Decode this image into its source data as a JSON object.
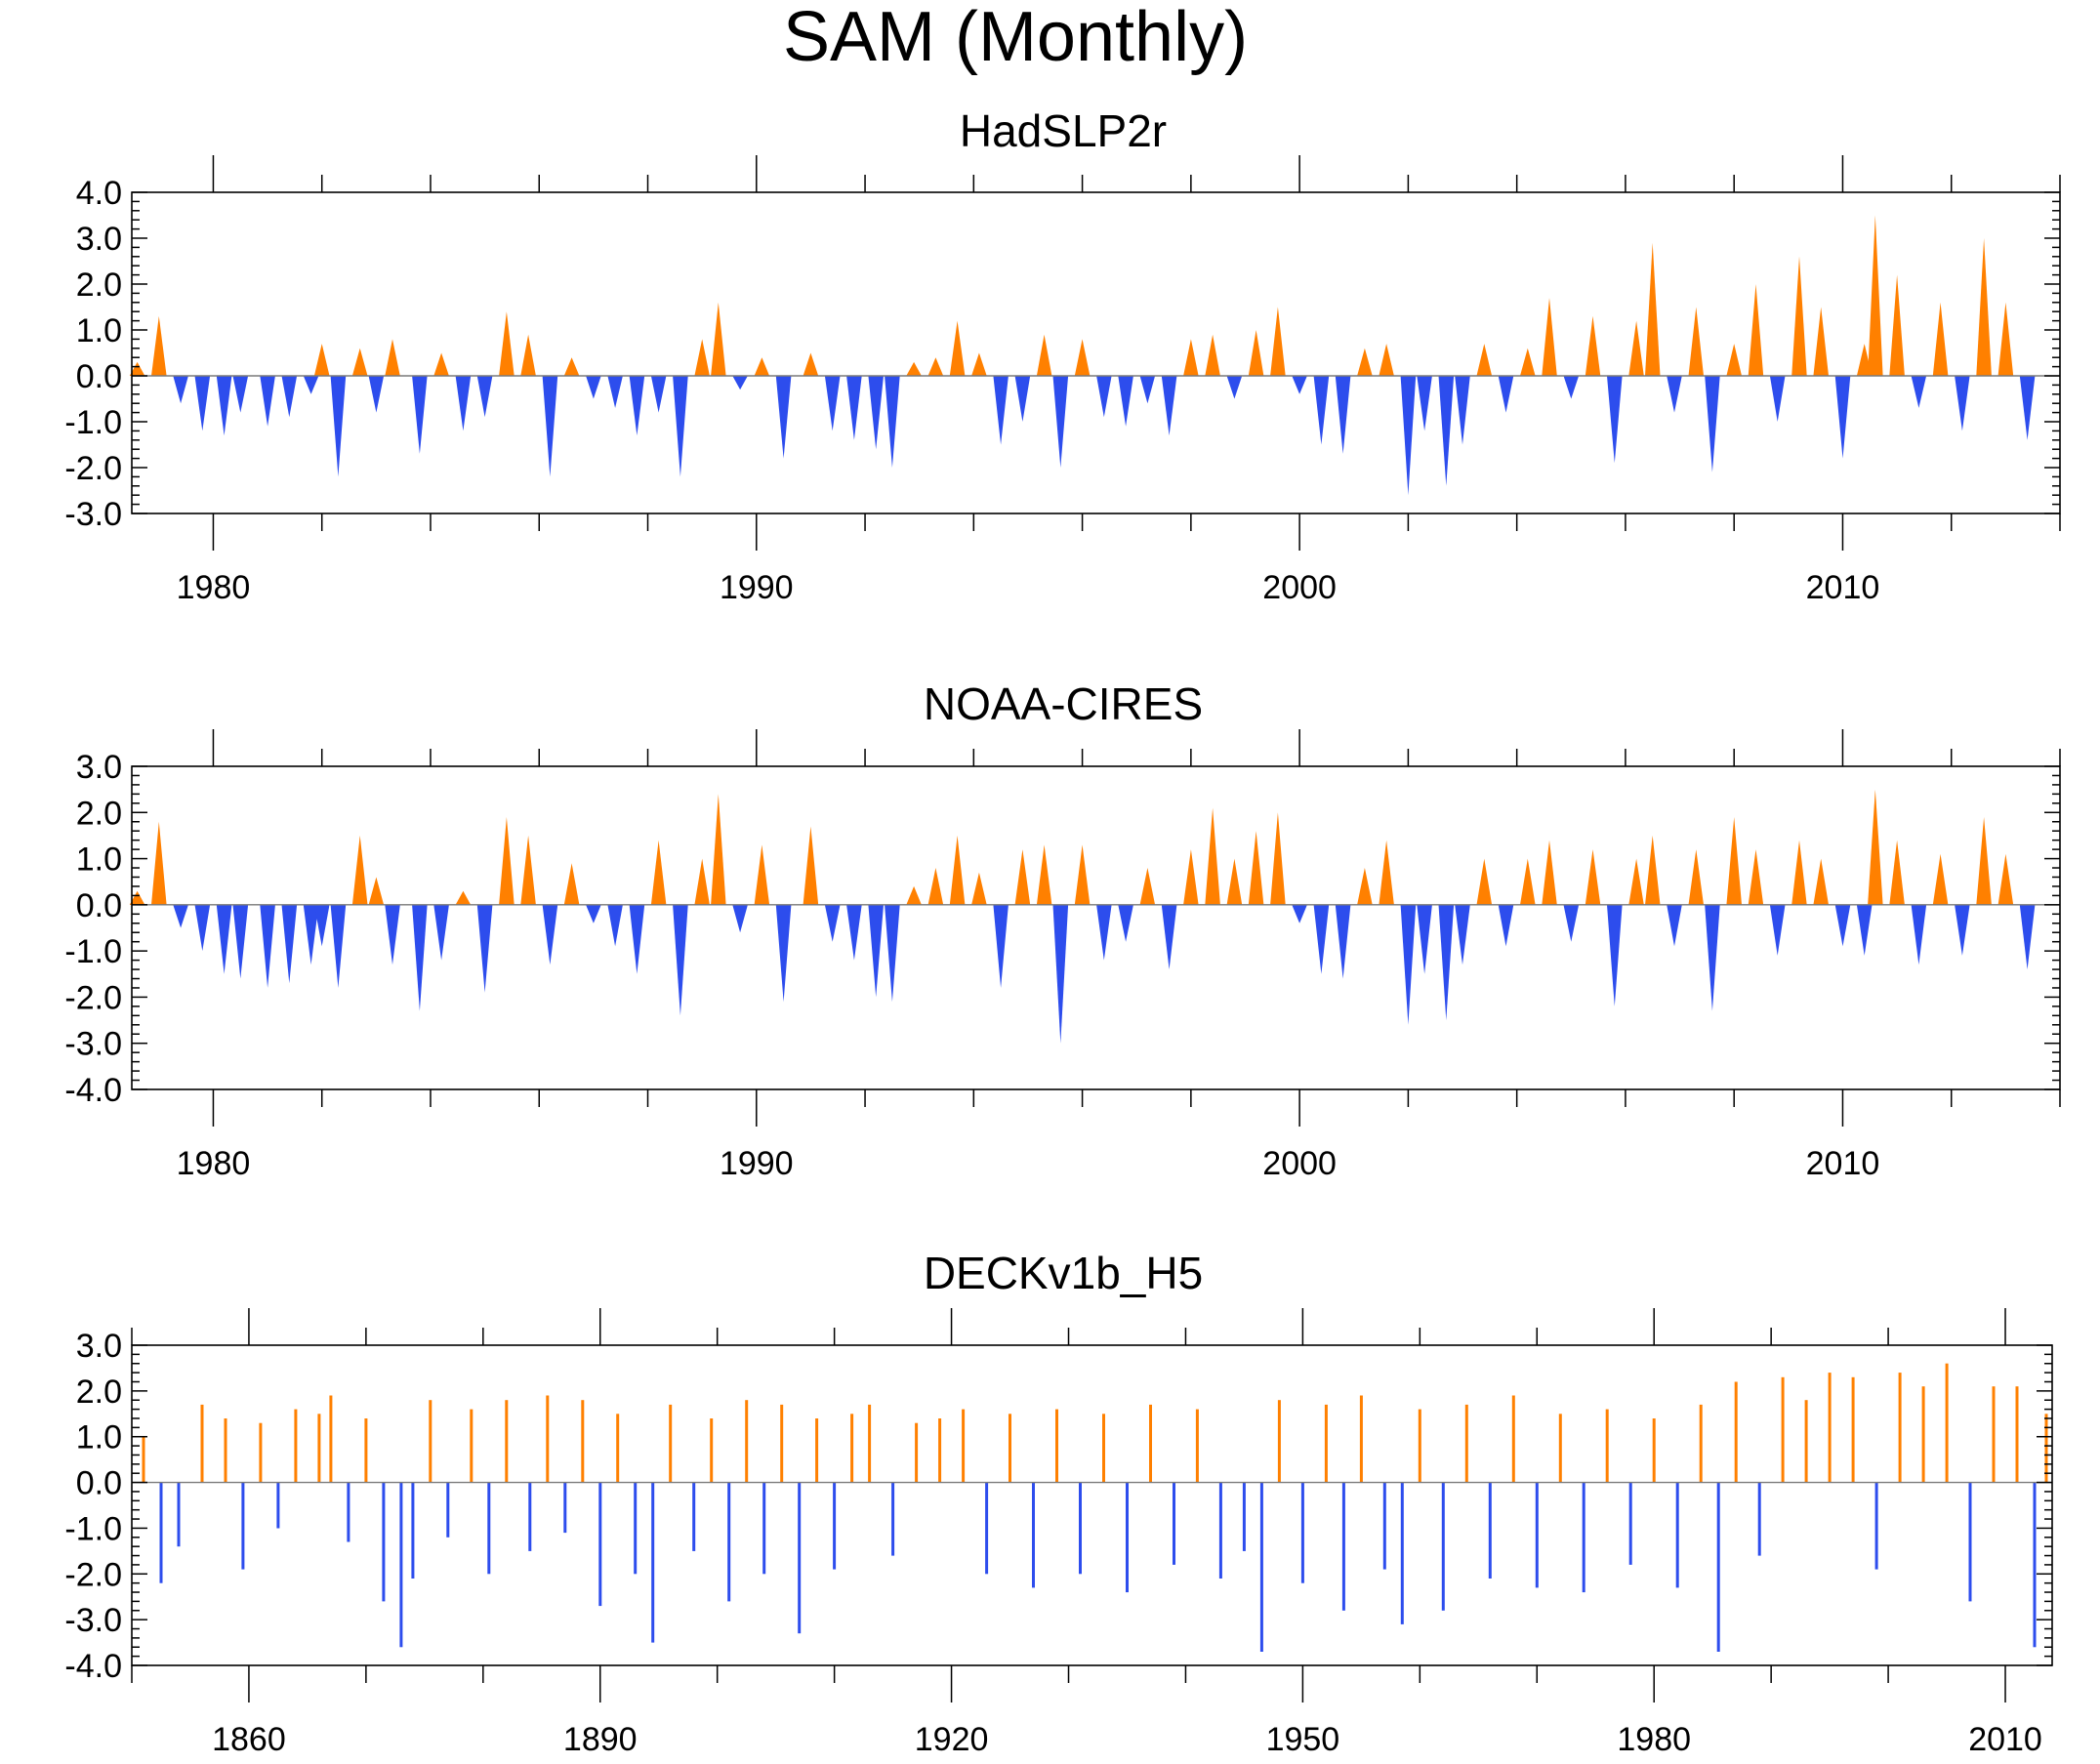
{
  "figure_title": "SAM (Monthly)",
  "colors": {
    "positive": "#ff8000",
    "negative": "#2d4ded",
    "zero_line": "#7a7a7a",
    "frame": "#000000"
  },
  "chart_data": [
    {
      "type": "area",
      "title": "HadSLP2r",
      "xlim": [
        1978.5,
        2014.0
      ],
      "ylim": [
        -3.0,
        4.0
      ],
      "y_ticks": [
        4.0,
        3.0,
        2.0,
        1.0,
        0.0,
        -1.0,
        -2.0,
        -3.0
      ],
      "y_tick_labels": [
        "4.0",
        "3.0",
        "2.0",
        "1.0",
        "0.0",
        "-1.0",
        "-2.0",
        "-3.0"
      ],
      "x_major_ticks": [
        1980,
        1990,
        2000,
        2010
      ],
      "x_tick_labels": [
        "1980",
        "1990",
        "2000",
        "2010"
      ],
      "x_minor_step": 2,
      "baseline": 0.0,
      "fill_above": "#ff8000",
      "fill_below": "#2d4ded",
      "x": [
        1978.6,
        1979.0,
        1979.4,
        1979.8,
        1980.2,
        1980.5,
        1981.0,
        1981.4,
        1981.8,
        1982.0,
        1982.3,
        1982.7,
        1983.0,
        1983.3,
        1983.8,
        1984.2,
        1984.6,
        1985.0,
        1985.4,
        1985.8,
        1986.2,
        1986.6,
        1987.0,
        1987.4,
        1987.8,
        1988.2,
        1988.6,
        1989.0,
        1989.3,
        1989.7,
        1990.1,
        1990.5,
        1991.0,
        1991.4,
        1991.8,
        1992.2,
        1992.5,
        1992.9,
        1993.3,
        1993.7,
        1994.1,
        1994.5,
        1994.9,
        1995.3,
        1995.6,
        1996.0,
        1996.4,
        1996.8,
        1997.2,
        1997.6,
        1998.0,
        1998.4,
        1998.8,
        1999.2,
        1999.6,
        2000.0,
        2000.4,
        2000.8,
        2001.2,
        2001.6,
        2002.0,
        2002.3,
        2002.7,
        2003.0,
        2003.4,
        2003.8,
        2004.2,
        2004.6,
        2005.0,
        2005.4,
        2005.8,
        2006.2,
        2006.5,
        2006.9,
        2007.3,
        2007.6,
        2008.0,
        2008.4,
        2008.8,
        2009.2,
        2009.6,
        2010.0,
        2010.4,
        2010.6,
        2011.0,
        2011.4,
        2011.8,
        2012.2,
        2012.6,
        2013.0,
        2013.4
      ],
      "values": [
        0.3,
        1.3,
        -0.6,
        -1.2,
        -1.3,
        -0.8,
        -1.1,
        -0.9,
        -0.4,
        0.7,
        -2.2,
        0.6,
        -0.8,
        0.8,
        -1.7,
        0.5,
        -1.2,
        -0.9,
        1.4,
        0.9,
        -2.2,
        0.4,
        -0.5,
        -0.7,
        -1.3,
        -0.8,
        -2.2,
        0.8,
        1.6,
        -0.3,
        0.4,
        -1.8,
        0.5,
        -1.2,
        -1.4,
        -1.6,
        -2.0,
        0.3,
        0.4,
        1.2,
        0.5,
        -1.5,
        -1.0,
        0.9,
        -2.0,
        0.8,
        -0.9,
        -1.1,
        -0.6,
        -1.3,
        0.8,
        0.9,
        -0.5,
        1.0,
        1.5,
        -0.4,
        -1.5,
        -1.7,
        0.6,
        0.7,
        -2.6,
        -1.2,
        -2.4,
        -1.5,
        0.7,
        -0.8,
        0.6,
        1.7,
        -0.5,
        1.3,
        -1.9,
        1.2,
        2.9,
        -0.8,
        1.5,
        -2.1,
        0.7,
        2.0,
        -1.0,
        2.6,
        1.5,
        -1.8,
        0.7,
        3.5,
        2.2,
        -0.7,
        1.6,
        -1.2,
        3.0,
        1.6,
        -1.4
      ]
    },
    {
      "type": "area",
      "title": "NOAA-CIRES",
      "xlim": [
        1978.5,
        2014.0
      ],
      "ylim": [
        -4.0,
        3.0
      ],
      "y_ticks": [
        3.0,
        2.0,
        1.0,
        0.0,
        -1.0,
        -2.0,
        -3.0,
        -4.0
      ],
      "y_tick_labels": [
        "3.0",
        "2.0",
        "1.0",
        "0.0",
        "-1.0",
        "-2.0",
        "-3.0",
        "-4.0"
      ],
      "x_major_ticks": [
        1980,
        1990,
        2000,
        2010
      ],
      "x_tick_labels": [
        "1980",
        "1990",
        "2000",
        "2010"
      ],
      "x_minor_step": 2,
      "baseline": 0.0,
      "fill_above": "#ff8000",
      "fill_below": "#2d4ded",
      "x": [
        1978.6,
        1979.0,
        1979.4,
        1979.8,
        1980.2,
        1980.5,
        1981.0,
        1981.4,
        1981.8,
        1982.0,
        1982.3,
        1982.7,
        1983.0,
        1983.3,
        1983.8,
        1984.2,
        1984.6,
        1985.0,
        1985.4,
        1985.8,
        1986.2,
        1986.6,
        1987.0,
        1987.4,
        1987.8,
        1988.2,
        1988.6,
        1989.0,
        1989.3,
        1989.7,
        1990.1,
        1990.5,
        1991.0,
        1991.4,
        1991.8,
        1992.2,
        1992.5,
        1992.9,
        1993.3,
        1993.7,
        1994.1,
        1994.5,
        1994.9,
        1995.3,
        1995.6,
        1996.0,
        1996.4,
        1996.8,
        1997.2,
        1997.6,
        1998.0,
        1998.4,
        1998.8,
        1999.2,
        1999.6,
        2000.0,
        2000.4,
        2000.8,
        2001.2,
        2001.6,
        2002.0,
        2002.3,
        2002.7,
        2003.0,
        2003.4,
        2003.8,
        2004.2,
        2004.6,
        2005.0,
        2005.4,
        2005.8,
        2006.2,
        2006.5,
        2006.9,
        2007.3,
        2007.6,
        2008.0,
        2008.4,
        2008.8,
        2009.2,
        2009.6,
        2010.0,
        2010.4,
        2010.6,
        2011.0,
        2011.4,
        2011.8,
        2012.2,
        2012.6,
        2013.0,
        2013.4
      ],
      "values": [
        0.3,
        1.8,
        -0.5,
        -1.0,
        -1.5,
        -1.6,
        -1.8,
        -1.7,
        -1.3,
        -0.9,
        -1.8,
        1.5,
        0.6,
        -1.3,
        -2.3,
        -1.2,
        0.3,
        -1.9,
        1.9,
        1.5,
        -1.3,
        0.9,
        -0.4,
        -0.9,
        -1.5,
        1.4,
        -2.4,
        1.0,
        2.4,
        -0.6,
        1.3,
        -2.1,
        1.7,
        -0.8,
        -1.2,
        -2.0,
        -2.1,
        0.4,
        0.8,
        1.5,
        0.7,
        -1.8,
        1.2,
        1.3,
        -3.0,
        1.3,
        -1.2,
        -0.8,
        0.8,
        -1.4,
        1.2,
        2.1,
        1.0,
        1.6,
        2.0,
        -0.4,
        -1.5,
        -1.6,
        0.8,
        1.4,
        -2.6,
        -1.5,
        -2.5,
        -1.3,
        1.0,
        -0.9,
        1.0,
        1.4,
        -0.8,
        1.2,
        -2.2,
        1.0,
        1.5,
        -0.9,
        1.2,
        -2.3,
        1.9,
        1.2,
        -1.1,
        1.4,
        1.0,
        -0.9,
        -1.1,
        2.5,
        1.4,
        -1.3,
        1.1,
        -1.1,
        1.9,
        1.1,
        -1.4
      ]
    },
    {
      "type": "bar",
      "title": "DECKv1b_H5",
      "xlim": [
        1850.0,
        2014.0
      ],
      "ylim": [
        -4.0,
        3.0
      ],
      "y_ticks": [
        3.0,
        2.0,
        1.0,
        0.0,
        -1.0,
        -2.0,
        -3.0,
        -4.0
      ],
      "y_tick_labels": [
        "3.0",
        "2.0",
        "1.0",
        "0.0",
        "-1.0",
        "-2.0",
        "-3.0",
        "-4.0"
      ],
      "x_major_ticks": [
        1860,
        1890,
        1920,
        1950,
        1980,
        2010
      ],
      "x_tick_labels": [
        "1860",
        "1890",
        "1920",
        "1950",
        "1980",
        "2010"
      ],
      "x_minor_step": 10,
      "baseline": 0.0,
      "fill_above": "#ff8000",
      "fill_below": "#2d4ded",
      "x": [
        1851.0,
        1852.5,
        1854.0,
        1856.0,
        1858.0,
        1859.5,
        1861.0,
        1862.5,
        1864.0,
        1866.0,
        1867.0,
        1868.5,
        1870.0,
        1871.5,
        1873.0,
        1874.0,
        1875.5,
        1877.0,
        1879.0,
        1880.5,
        1882.0,
        1884.0,
        1885.5,
        1887.0,
        1888.5,
        1890.0,
        1891.5,
        1893.0,
        1894.5,
        1896.0,
        1898.0,
        1899.5,
        1901.0,
        1902.5,
        1904.0,
        1905.5,
        1907.0,
        1908.5,
        1910.0,
        1911.5,
        1913.0,
        1915.0,
        1917.0,
        1919.0,
        1921.0,
        1923.0,
        1925.0,
        1927.0,
        1929.0,
        1931.0,
        1933.0,
        1935.0,
        1937.0,
        1939.0,
        1941.0,
        1943.0,
        1945.0,
        1946.5,
        1948.0,
        1950.0,
        1952.0,
        1953.5,
        1955.0,
        1957.0,
        1958.5,
        1960.0,
        1962.0,
        1964.0,
        1966.0,
        1968.0,
        1970.0,
        1972.0,
        1974.0,
        1976.0,
        1978.0,
        1980.0,
        1982.0,
        1984.0,
        1985.5,
        1987.0,
        1989.0,
        1991.0,
        1993.0,
        1995.0,
        1997.0,
        1999.0,
        2001.0,
        2003.0,
        2005.0,
        2007.0,
        2009.0,
        2011.0,
        2012.5,
        2013.5
      ],
      "values": [
        1.0,
        -2.2,
        -1.4,
        1.7,
        1.4,
        -1.9,
        1.3,
        -1.0,
        1.6,
        1.5,
        1.9,
        -1.3,
        1.4,
        -2.6,
        -3.6,
        -2.1,
        1.8,
        -1.2,
        1.6,
        -2.0,
        1.8,
        -1.5,
        1.9,
        -1.1,
        1.8,
        -2.7,
        1.5,
        -2.0,
        -3.5,
        1.7,
        -1.5,
        1.4,
        -2.6,
        1.8,
        -2.0,
        1.7,
        -3.3,
        1.4,
        -1.9,
        1.5,
        1.7,
        -1.6,
        1.3,
        1.4,
        1.6,
        -2.0,
        1.5,
        -2.3,
        1.6,
        -2.0,
        1.5,
        -2.4,
        1.7,
        -1.8,
        1.6,
        -2.1,
        -1.5,
        -3.7,
        1.8,
        -2.2,
        1.7,
        -2.8,
        1.9,
        -1.9,
        -3.1,
        1.6,
        -2.8,
        1.7,
        -2.1,
        1.9,
        -2.3,
        1.5,
        -2.4,
        1.6,
        -1.8,
        1.4,
        -2.3,
        1.7,
        -3.7,
        2.2,
        -1.6,
        2.3,
        1.8,
        2.4,
        2.3,
        -1.9,
        2.4,
        2.1,
        2.6,
        -2.6,
        2.1,
        2.1,
        -3.6,
        1.5
      ]
    }
  ]
}
